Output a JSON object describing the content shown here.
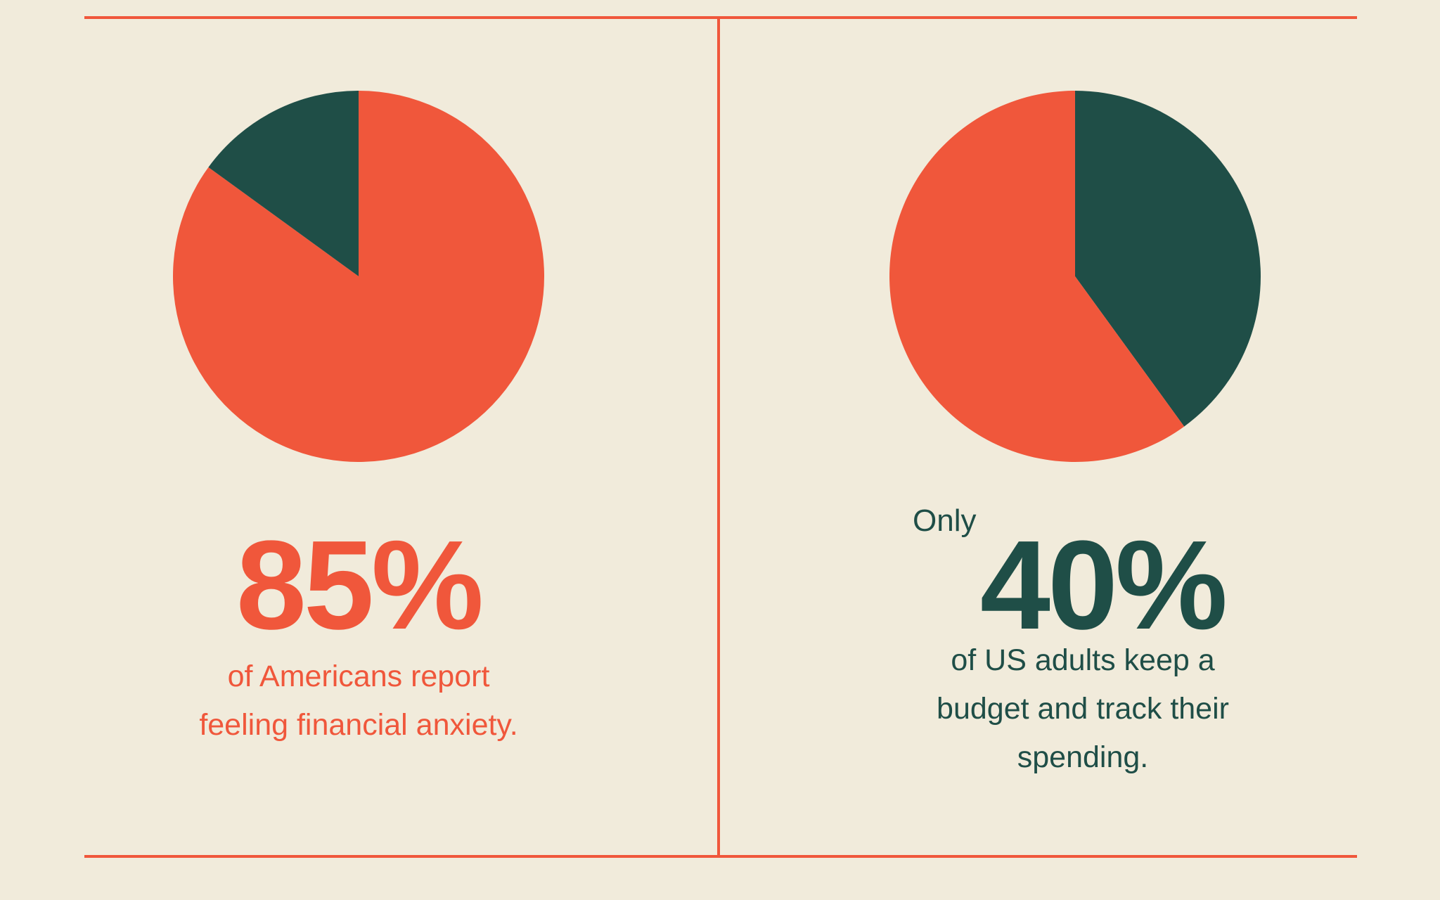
{
  "colors": {
    "background": "#f1ebdb",
    "accent": "#f0573b",
    "dark": "#1f4e47"
  },
  "chart_data": [
    {
      "type": "pie",
      "slices": [
        {
          "label": "feeling financial anxiety",
          "value": 85,
          "color": "#f0573b"
        },
        {
          "label": "other",
          "value": 15,
          "color": "#1f4e47"
        }
      ],
      "stat": "85%",
      "caption_lines": [
        "of Americans report",
        "feeling financial anxiety."
      ]
    },
    {
      "type": "pie",
      "slices": [
        {
          "label": "keep a budget and track their spending",
          "value": 40,
          "color": "#1f4e47"
        },
        {
          "label": "other",
          "value": 60,
          "color": "#f0573b"
        }
      ],
      "prefix": "Only",
      "stat": "40%",
      "caption_lines": [
        "of US adults keep a",
        "budget and track their",
        "spending."
      ]
    }
  ]
}
